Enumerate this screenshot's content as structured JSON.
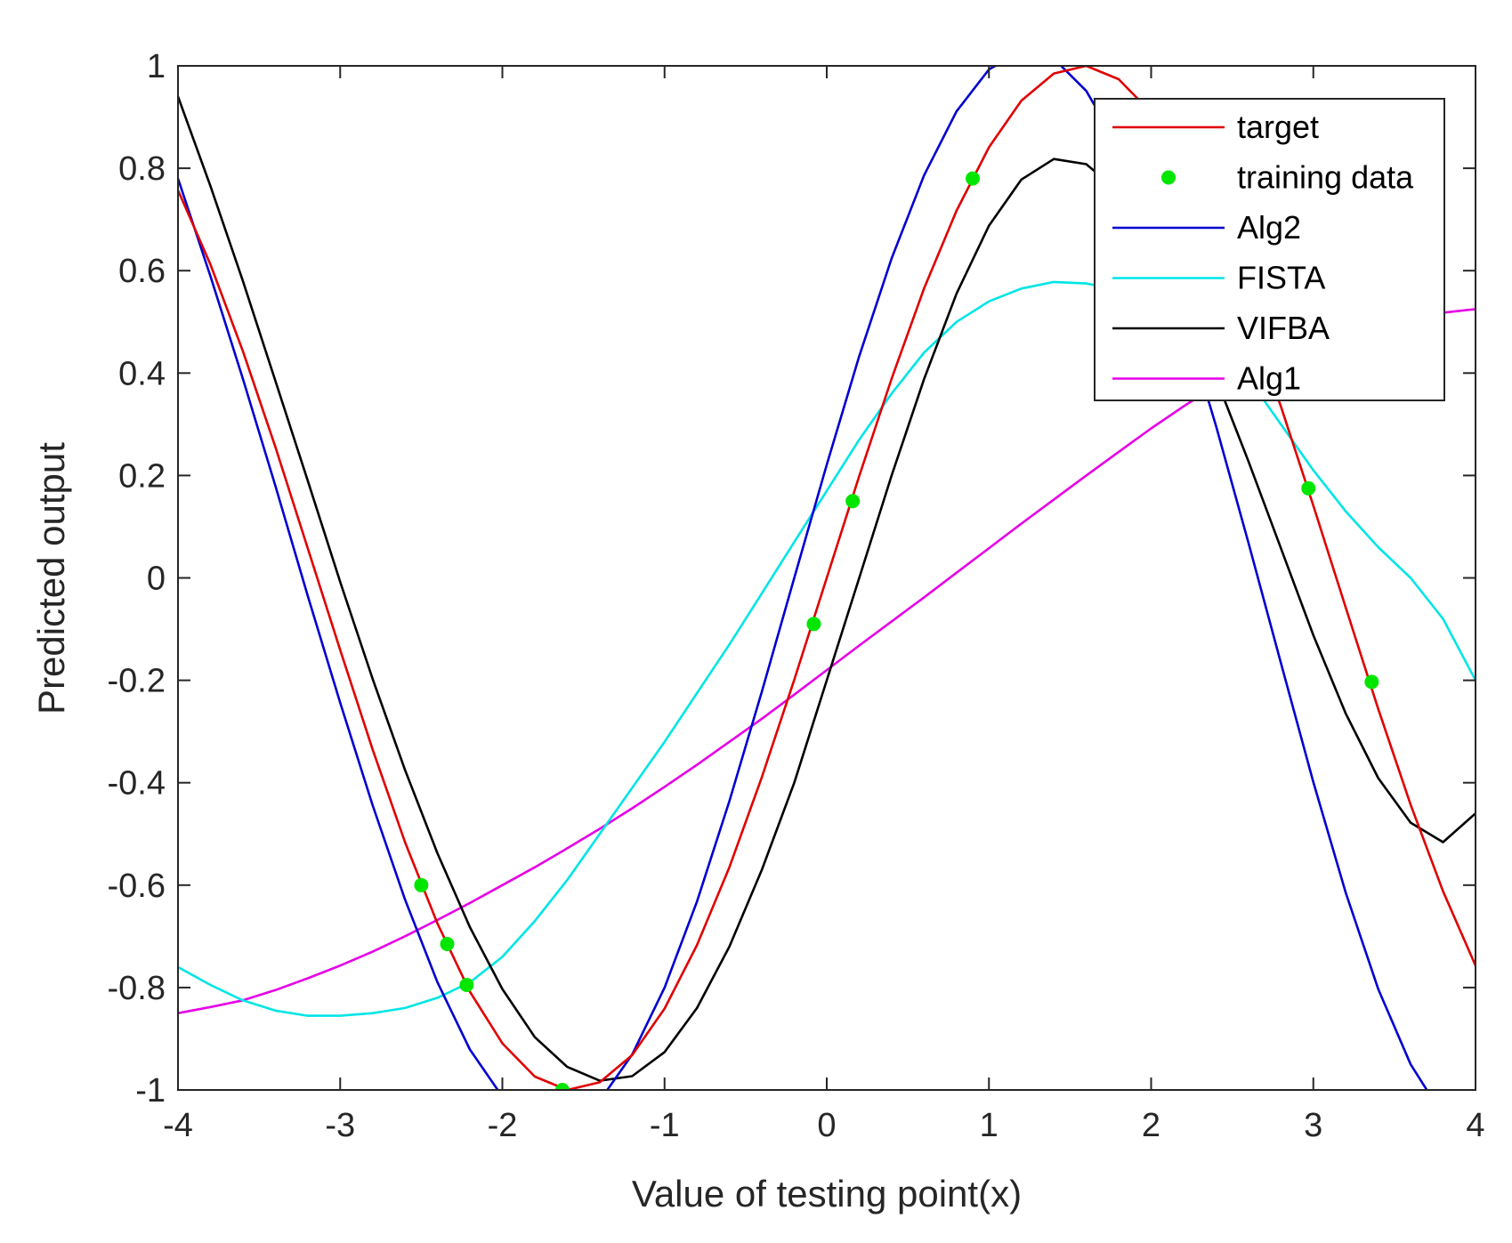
{
  "chart_data": {
    "type": "line",
    "title": "",
    "xlabel": "Value of testing point(x)",
    "ylabel": "Predicted output",
    "xlim": [
      -4,
      4
    ],
    "ylim": [
      -1,
      1
    ],
    "xticks": [
      -4,
      -3,
      -2,
      -1,
      0,
      1,
      2,
      3,
      4
    ],
    "yticks": [
      -1,
      -0.8,
      -0.6,
      -0.4,
      -0.2,
      0,
      0.2,
      0.4,
      0.6,
      0.8,
      1
    ],
    "xtick_labels": [
      "-4",
      "-3",
      "-2",
      "-1",
      "0",
      "1",
      "2",
      "3",
      "4"
    ],
    "ytick_labels": [
      "-1",
      "-0.8",
      "-0.6",
      "-0.4",
      "-0.2",
      "0",
      "0.2",
      "0.4",
      "0.6",
      "0.8",
      "1"
    ],
    "grid": false,
    "legend_position": "top-right",
    "series": [
      {
        "name": "target",
        "style": "line",
        "color": "#e00000",
        "x": [
          -4,
          -3.8,
          -3.6,
          -3.4,
          -3.2,
          -3,
          -2.8,
          -2.6,
          -2.4,
          -2.2,
          -2,
          -1.8,
          -1.6,
          -1.4,
          -1.2,
          -1,
          -0.8,
          -0.6,
          -0.4,
          -0.2,
          0,
          0.2,
          0.4,
          0.6,
          0.8,
          1,
          1.2,
          1.4,
          1.6,
          1.8,
          2,
          2.2,
          2.4,
          2.6,
          2.8,
          3,
          3.2,
          3.4,
          3.6,
          3.8,
          4
        ],
        "y": [
          0.757,
          0.612,
          0.443,
          0.256,
          0.058,
          -0.141,
          -0.335,
          -0.516,
          -0.675,
          -0.808,
          -0.909,
          -0.974,
          -1.0,
          -0.985,
          -0.932,
          -0.841,
          -0.717,
          -0.565,
          -0.389,
          -0.199,
          0.0,
          0.199,
          0.389,
          0.565,
          0.717,
          0.841,
          0.932,
          0.985,
          1.0,
          0.974,
          0.909,
          0.808,
          0.675,
          0.516,
          0.335,
          0.141,
          -0.058,
          -0.256,
          -0.443,
          -0.612,
          -0.757
        ]
      },
      {
        "name": "training data",
        "style": "markers",
        "color": "#00e600",
        "x": [
          -2.5,
          -2.34,
          -2.22,
          -1.63,
          -0.08,
          0.16,
          0.9,
          2.97,
          3.36
        ],
        "y": [
          -0.6,
          -0.715,
          -0.795,
          -1.0,
          -0.09,
          0.15,
          0.78,
          0.175,
          -0.203
        ]
      },
      {
        "name": "Alg2",
        "style": "line",
        "color": "#0000d0",
        "x": [
          -4,
          -3.8,
          -3.6,
          -3.4,
          -3.2,
          -3,
          -2.8,
          -2.6,
          -2.4,
          -2.2,
          -2,
          -1.8,
          -1.6,
          -1.4,
          -1.2,
          -1,
          -0.8,
          -0.6,
          -0.4,
          -0.2,
          0,
          0.2,
          0.4,
          0.6,
          0.8,
          1,
          1.2,
          1.4,
          1.6,
          1.8,
          2,
          2.2,
          2.4,
          2.6,
          2.8,
          3,
          3.2,
          3.4,
          3.6,
          3.8,
          4
        ],
        "y": [
          0.78,
          0.589,
          0.389,
          0.18,
          -0.035,
          -0.244,
          -0.444,
          -0.628,
          -0.79,
          -0.921,
          -1.013,
          -1.063,
          -1.066,
          -1.021,
          -0.931,
          -0.8,
          -0.632,
          -0.436,
          -0.222,
          0.0,
          0.221,
          0.433,
          0.624,
          0.786,
          0.911,
          0.993,
          1.028,
          1.014,
          0.951,
          0.842,
          0.692,
          0.508,
          0.297,
          0.069,
          -0.166,
          -0.399,
          -0.615,
          -0.803,
          -0.95,
          -1.05,
          -1.1
        ]
      },
      {
        "name": "FISTA",
        "style": "line",
        "color": "#00e5e5",
        "x": [
          -4,
          -3.8,
          -3.6,
          -3.4,
          -3.2,
          -3,
          -2.8,
          -2.6,
          -2.4,
          -2.2,
          -2,
          -1.8,
          -1.6,
          -1.4,
          -1.2,
          -1,
          -0.8,
          -0.6,
          -0.4,
          -0.2,
          0,
          0.2,
          0.4,
          0.6,
          0.8,
          1,
          1.2,
          1.4,
          1.6,
          1.8,
          2,
          2.2,
          2.4,
          2.6,
          2.8,
          3,
          3.2,
          3.4,
          3.6,
          3.8,
          4
        ],
        "y": [
          -0.76,
          -0.795,
          -0.825,
          -0.845,
          -0.855,
          -0.855,
          -0.85,
          -0.84,
          -0.82,
          -0.79,
          -0.74,
          -0.67,
          -0.59,
          -0.5,
          -0.41,
          -0.32,
          -0.225,
          -0.13,
          -0.03,
          0.07,
          0.17,
          0.27,
          0.36,
          0.44,
          0.5,
          0.54,
          0.565,
          0.578,
          0.575,
          0.563,
          0.545,
          0.51,
          0.46,
          0.39,
          0.3,
          0.21,
          0.13,
          0.06,
          0.0,
          -0.08,
          -0.2
        ]
      },
      {
        "name": "VIFBA",
        "style": "line",
        "color": "#000000",
        "x": [
          -4,
          -3.8,
          -3.6,
          -3.4,
          -3.2,
          -3,
          -2.8,
          -2.6,
          -2.4,
          -2.2,
          -2,
          -1.8,
          -1.6,
          -1.4,
          -1.2,
          -1,
          -0.8,
          -0.6,
          -0.4,
          -0.2,
          0,
          0.2,
          0.4,
          0.6,
          0.8,
          1,
          1.2,
          1.4,
          1.6,
          1.8,
          2,
          2.2,
          2.4,
          2.6,
          2.8,
          3,
          3.2,
          3.4,
          3.6,
          3.8,
          4
        ],
        "y": [
          0.94,
          0.765,
          0.58,
          0.385,
          0.19,
          -0.008,
          -0.197,
          -0.375,
          -0.538,
          -0.682,
          -0.803,
          -0.897,
          -0.955,
          -0.982,
          -0.973,
          -0.926,
          -0.84,
          -0.72,
          -0.57,
          -0.4,
          -0.2,
          0.0,
          0.2,
          0.388,
          0.555,
          0.688,
          0.778,
          0.818,
          0.808,
          0.755,
          0.665,
          0.538,
          0.39,
          0.228,
          0.058,
          -0.112,
          -0.265,
          -0.391,
          -0.478,
          -0.516,
          -0.46
        ]
      },
      {
        "name": "Alg1",
        "style": "line",
        "color": "#e600e6",
        "x": [
          -4,
          -3.8,
          -3.6,
          -3.4,
          -3.2,
          -3,
          -2.8,
          -2.6,
          -2.4,
          -2.2,
          -2,
          -1.8,
          -1.6,
          -1.4,
          -1.2,
          -1,
          -0.8,
          -0.6,
          -0.4,
          -0.2,
          0,
          0.2,
          0.4,
          0.6,
          0.8,
          1,
          1.2,
          1.4,
          1.6,
          1.8,
          2,
          2.2,
          2.4,
          2.6,
          2.8,
          3,
          3.2,
          3.4,
          3.6,
          3.8,
          4
        ],
        "y": [
          -0.85,
          -0.838,
          -0.825,
          -0.805,
          -0.782,
          -0.757,
          -0.73,
          -0.7,
          -0.668,
          -0.635,
          -0.6,
          -0.565,
          -0.528,
          -0.49,
          -0.45,
          -0.408,
          -0.365,
          -0.32,
          -0.275,
          -0.228,
          -0.18,
          -0.132,
          -0.085,
          -0.038,
          0.01,
          0.058,
          0.106,
          0.153,
          0.2,
          0.246,
          0.292,
          0.335,
          0.376,
          0.41,
          0.44,
          0.465,
          0.484,
          0.499,
          0.51,
          0.518,
          0.525
        ]
      }
    ]
  }
}
